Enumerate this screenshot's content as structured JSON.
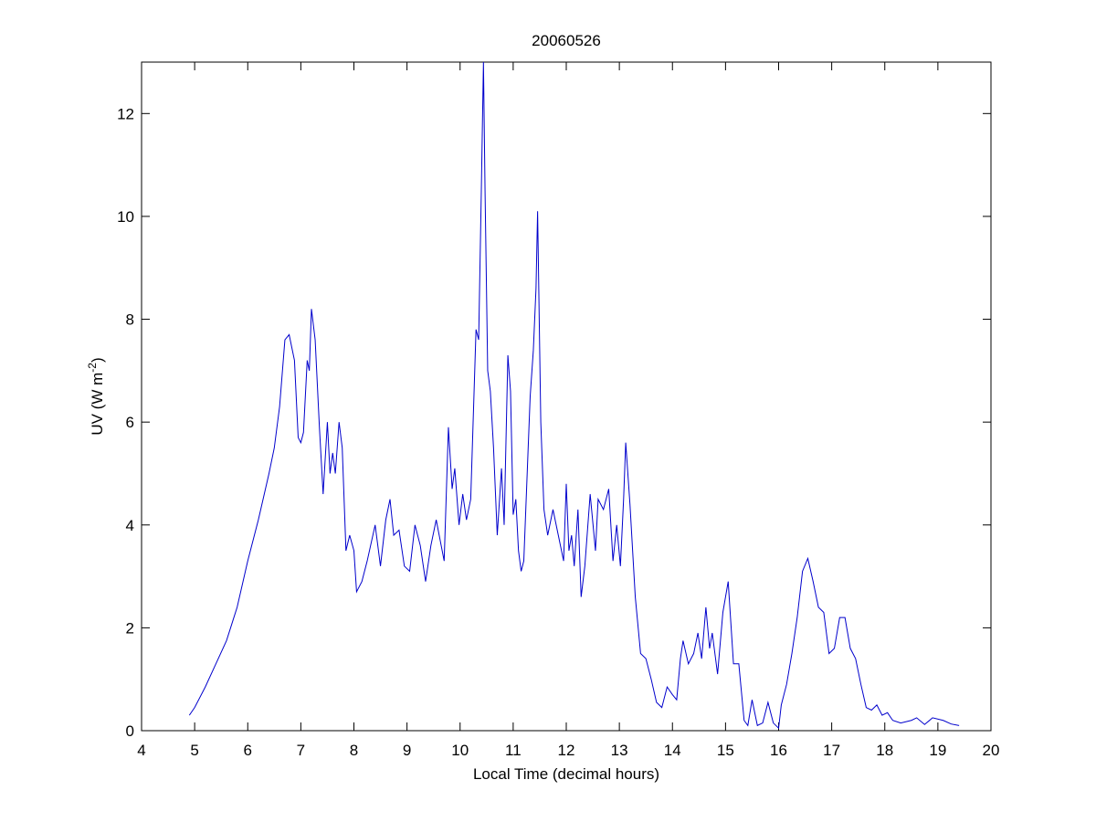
{
  "chart_data": {
    "type": "line",
    "title": "20060526",
    "xlabel": "Local Time (decimal hours)",
    "ylabel": [
      "UV (W m",
      "-2",
      ")"
    ],
    "color": "#0000cc",
    "xlim": [
      4,
      20
    ],
    "ylim": [
      0,
      13
    ],
    "xticks": [
      4,
      5,
      6,
      7,
      8,
      9,
      10,
      11,
      12,
      13,
      14,
      15,
      16,
      17,
      18,
      19,
      20
    ],
    "yticks": [
      0,
      2,
      4,
      6,
      8,
      10,
      12
    ],
    "grid": false,
    "x": [
      4.9,
      5.0,
      5.2,
      5.4,
      5.6,
      5.8,
      6.0,
      6.2,
      6.4,
      6.5,
      6.6,
      6.7,
      6.78,
      6.88,
      6.95,
      7.0,
      7.05,
      7.12,
      7.16,
      7.2,
      7.27,
      7.35,
      7.42,
      7.5,
      7.55,
      7.6,
      7.65,
      7.72,
      7.78,
      7.85,
      7.92,
      8.0,
      8.05,
      8.15,
      8.25,
      8.4,
      8.5,
      8.6,
      8.68,
      8.75,
      8.85,
      8.95,
      9.05,
      9.15,
      9.25,
      9.35,
      9.45,
      9.55,
      9.7,
      9.78,
      9.85,
      9.9,
      9.98,
      10.05,
      10.12,
      10.2,
      10.3,
      10.35,
      10.4,
      10.44,
      10.47,
      10.52,
      10.57,
      10.63,
      10.7,
      10.78,
      10.83,
      10.9,
      10.95,
      11.0,
      11.05,
      11.1,
      11.15,
      11.2,
      11.32,
      11.38,
      11.43,
      11.46,
      11.52,
      11.58,
      11.65,
      11.75,
      11.85,
      11.95,
      12.0,
      12.05,
      12.1,
      12.15,
      12.22,
      12.28,
      12.35,
      12.45,
      12.55,
      12.6,
      12.7,
      12.8,
      12.88,
      12.95,
      13.02,
      13.08,
      13.12,
      13.2,
      13.3,
      13.4,
      13.5,
      13.6,
      13.7,
      13.8,
      13.9,
      14.0,
      14.08,
      14.15,
      14.2,
      14.3,
      14.4,
      14.48,
      14.55,
      14.63,
      14.7,
      14.75,
      14.85,
      14.95,
      15.05,
      15.15,
      15.25,
      15.35,
      15.42,
      15.5,
      15.6,
      15.7,
      15.8,
      15.9,
      16.0,
      16.05,
      16.15,
      16.25,
      16.35,
      16.45,
      16.55,
      16.65,
      16.75,
      16.85,
      16.95,
      17.05,
      17.15,
      17.25,
      17.35,
      17.45,
      17.55,
      17.65,
      17.75,
      17.85,
      17.95,
      18.05,
      18.15,
      18.3,
      18.5,
      18.6,
      18.75,
      18.9,
      19.1,
      19.25,
      19.4
    ],
    "values": [
      0.3,
      0.45,
      0.85,
      1.3,
      1.75,
      2.4,
      3.3,
      4.1,
      5.0,
      5.5,
      6.3,
      7.6,
      7.7,
      7.2,
      5.7,
      5.6,
      5.8,
      7.2,
      7.0,
      8.2,
      7.6,
      5.9,
      4.6,
      6.0,
      5.0,
      5.4,
      5.0,
      6.0,
      5.5,
      3.5,
      3.8,
      3.5,
      2.7,
      2.9,
      3.3,
      4.0,
      3.2,
      4.1,
      4.5,
      3.8,
      3.9,
      3.2,
      3.1,
      4.0,
      3.6,
      2.9,
      3.6,
      4.1,
      3.3,
      5.9,
      4.7,
      5.1,
      4.0,
      4.6,
      4.1,
      4.5,
      7.8,
      7.6,
      10.5,
      13.0,
      10.5,
      7.0,
      6.6,
      5.5,
      3.8,
      5.1,
      4.0,
      7.3,
      6.6,
      4.2,
      4.5,
      3.5,
      3.1,
      3.3,
      6.5,
      7.4,
      8.6,
      10.1,
      6.0,
      4.3,
      3.8,
      4.3,
      3.8,
      3.3,
      4.8,
      3.5,
      3.8,
      3.2,
      4.3,
      2.6,
      3.2,
      4.6,
      3.5,
      4.5,
      4.3,
      4.7,
      3.3,
      4.0,
      3.2,
      4.5,
      5.6,
      4.4,
      2.6,
      1.5,
      1.4,
      1.0,
      0.55,
      0.45,
      0.85,
      0.7,
      0.6,
      1.4,
      1.75,
      1.3,
      1.5,
      1.9,
      1.4,
      2.4,
      1.6,
      1.9,
      1.1,
      2.3,
      2.9,
      1.3,
      1.3,
      0.2,
      0.1,
      0.6,
      0.1,
      0.15,
      0.55,
      0.15,
      0.05,
      0.5,
      0.9,
      1.5,
      2.2,
      3.1,
      3.35,
      2.9,
      2.4,
      2.3,
      1.5,
      1.6,
      2.2,
      2.2,
      1.6,
      1.4,
      0.9,
      0.45,
      0.4,
      0.5,
      0.3,
      0.35,
      0.2,
      0.15,
      0.2,
      0.25,
      0.12,
      0.25,
      0.2,
      0.13,
      0.1
    ]
  }
}
